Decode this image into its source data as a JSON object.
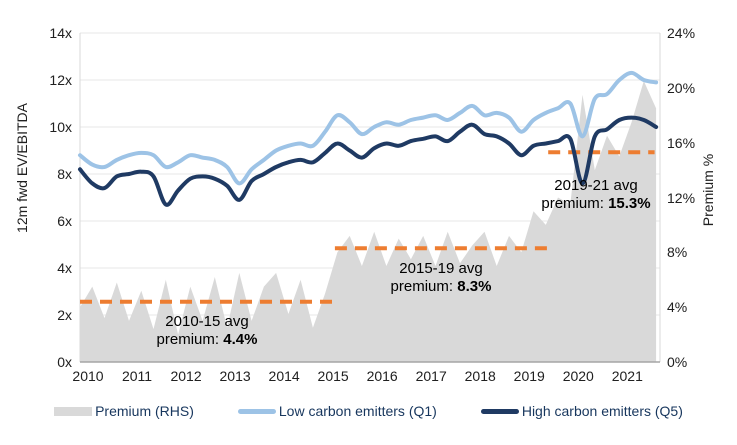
{
  "chart_data": {
    "type": "area",
    "title": "",
    "y_left": {
      "label": "12m fwd EV/EBITDA",
      "min": 0,
      "max": 14,
      "tick_values": [
        0,
        2,
        4,
        6,
        8,
        10,
        12,
        14
      ],
      "tick_labels": [
        "0x",
        "2x",
        "4x",
        "6x",
        "8x",
        "10x",
        "12x",
        "14x"
      ]
    },
    "y_right": {
      "label": "Premium %",
      "min": 0,
      "max": 24,
      "tick_values": [
        0,
        4,
        8,
        12,
        16,
        20,
        24
      ],
      "tick_labels": [
        "0%",
        "4%",
        "8%",
        "12%",
        "16%",
        "20%",
        "24%"
      ]
    },
    "x": {
      "min": 2010,
      "max": 2021.83,
      "tick_labels": [
        "2010",
        "2011",
        "2012",
        "2013",
        "2014",
        "2015",
        "2016",
        "2017",
        "2018",
        "2019",
        "2020",
        "2021"
      ],
      "values": [
        2010,
        2010.25,
        2010.5,
        2010.75,
        2011,
        2011.25,
        2011.5,
        2011.75,
        2012,
        2012.25,
        2012.5,
        2012.75,
        2013,
        2013.25,
        2013.5,
        2013.75,
        2014,
        2014.25,
        2014.5,
        2014.75,
        2015,
        2015.25,
        2015.5,
        2015.75,
        2016,
        2016.25,
        2016.5,
        2016.75,
        2017,
        2017.25,
        2017.5,
        2017.75,
        2018,
        2018.25,
        2018.5,
        2018.75,
        2019,
        2019.25,
        2019.5,
        2019.75,
        2020,
        2020.25,
        2020.5,
        2020.75,
        2021,
        2021.25,
        2021.5,
        2021.75
      ]
    },
    "series": [
      {
        "id": "premium-area",
        "name": "Premium (RHS)",
        "type": "area",
        "axis": "right",
        "color": "#d9d9d9",
        "values": [
          4.0,
          5.5,
          3.2,
          5.8,
          3.0,
          5.2,
          2.4,
          6.0,
          2.0,
          5.5,
          3.0,
          6.2,
          2.5,
          6.5,
          3.0,
          5.5,
          6.5,
          3.5,
          6.0,
          2.5,
          5.0,
          8.0,
          9.2,
          7.0,
          9.5,
          7.0,
          9.0,
          7.5,
          9.2,
          7.0,
          9.5,
          7.2,
          8.5,
          9.5,
          7.0,
          9.2,
          8.0,
          11.0,
          10.0,
          12.0,
          11.5,
          19.5,
          14.0,
          16.5,
          15.0,
          17.5,
          20.5,
          18.5
        ]
      },
      {
        "id": "low-carbon-line",
        "name": "Low carbon emitters (Q1)",
        "type": "line",
        "axis": "left",
        "color": "#9dc3e6",
        "values": [
          8.8,
          8.4,
          8.3,
          8.6,
          8.8,
          8.9,
          8.8,
          8.3,
          8.5,
          8.8,
          8.7,
          8.6,
          8.3,
          7.6,
          8.2,
          8.6,
          9.0,
          9.2,
          9.3,
          9.2,
          9.8,
          10.5,
          10.2,
          9.7,
          10.0,
          10.2,
          10.1,
          10.3,
          10.4,
          10.5,
          10.3,
          10.6,
          10.9,
          10.5,
          10.6,
          10.4,
          9.8,
          10.3,
          10.6,
          10.8,
          11.0,
          9.6,
          11.2,
          11.4,
          12.0,
          12.3,
          12.0,
          11.9
        ]
      },
      {
        "id": "high-carbon-line",
        "name": "High carbon emitters (Q5)",
        "type": "line",
        "axis": "left",
        "color": "#1f3a63",
        "values": [
          8.2,
          7.6,
          7.4,
          7.9,
          8.0,
          8.1,
          7.9,
          6.7,
          7.3,
          7.8,
          7.9,
          7.8,
          7.5,
          6.9,
          7.7,
          8.0,
          8.3,
          8.5,
          8.6,
          8.5,
          8.9,
          9.3,
          9.0,
          8.7,
          9.1,
          9.3,
          9.2,
          9.4,
          9.5,
          9.6,
          9.4,
          9.8,
          10.1,
          9.7,
          9.6,
          9.3,
          8.8,
          9.2,
          9.3,
          9.4,
          9.5,
          7.6,
          9.6,
          9.9,
          10.3,
          10.4,
          10.3,
          10.0
        ]
      }
    ],
    "avg_lines": [
      {
        "x_start": 2010.0,
        "x_end": 2015.2,
        "value": 4.4,
        "color": "#ed7d31",
        "label_line1": "2010-15 avg",
        "label_prefix": "premium: ",
        "label_value": "4.4%"
      },
      {
        "x_start": 2015.2,
        "x_end": 2019.55,
        "value": 8.3,
        "color": "#ed7d31",
        "label_line1": "2015-19 avg",
        "label_prefix": "premium: ",
        "label_value": "8.3%"
      },
      {
        "x_start": 2019.55,
        "x_end": 2021.72,
        "value": 15.3,
        "color": "#ed7d31",
        "label_line1": "2019-21 avg",
        "label_prefix": "premium: ",
        "label_value": "15.3%"
      }
    ],
    "grid": "horizontal",
    "legend_position": "bottom"
  },
  "legend": {
    "items": [
      {
        "label": "Premium (RHS)",
        "color": "#d9d9d9",
        "kind": "area"
      },
      {
        "label": "Low carbon emitters (Q1)",
        "color": "#9dc3e6",
        "kind": "line"
      },
      {
        "label": "High carbon emitters (Q5)",
        "color": "#1f3a63",
        "kind": "line"
      }
    ]
  }
}
